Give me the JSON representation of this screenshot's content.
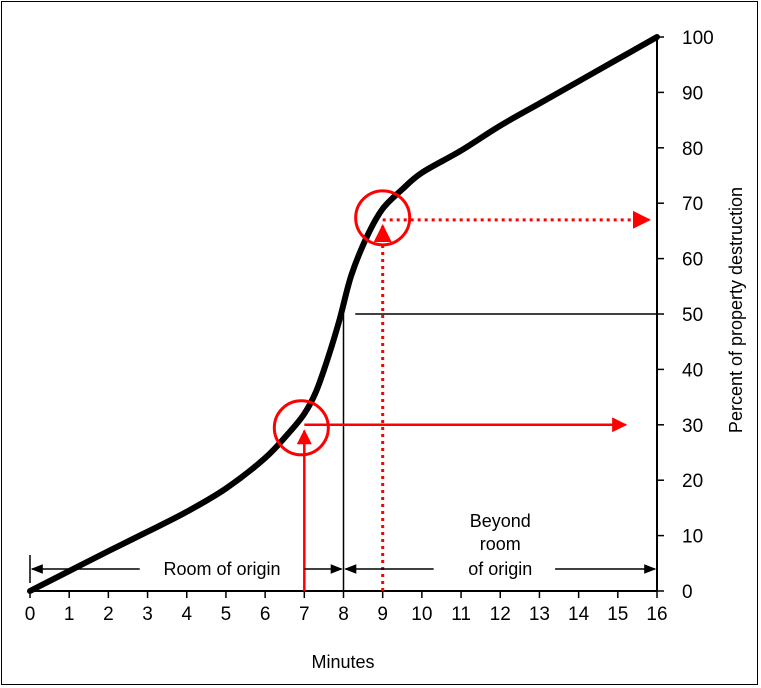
{
  "chart_data": {
    "type": "line",
    "xlabel": "Minutes",
    "ylabel": "Percent of property destruction",
    "xlim": [
      0,
      16
    ],
    "ylim": [
      0,
      100
    ],
    "x_ticks": [
      0,
      1,
      2,
      3,
      4,
      5,
      6,
      7,
      8,
      9,
      10,
      11,
      12,
      13,
      14,
      15,
      16
    ],
    "y_ticks": [
      0,
      10,
      20,
      30,
      40,
      50,
      60,
      70,
      80,
      90,
      100
    ],
    "y_axis_side": "right",
    "series": [
      {
        "x": [
          0,
          1,
          2,
          3,
          4,
          5,
          6,
          6.6,
          7,
          7.3,
          7.6,
          7.9,
          8.2,
          8.6,
          9,
          9.5,
          10,
          11,
          12,
          13,
          14,
          15,
          16
        ],
        "y": [
          0,
          3.6,
          7.2,
          10.7,
          14.3,
          18.5,
          24,
          28.5,
          32,
          36,
          42,
          49,
          57,
          64,
          69,
          72.5,
          75.5,
          79.5,
          84,
          88,
          92,
          96,
          100
        ]
      }
    ],
    "annotations": {
      "reference_line_50": {
        "x_start": 8,
        "y": 50
      },
      "reference_vline_8": {
        "x": 8,
        "y_top": 50
      },
      "solid_marker": {
        "x": 7,
        "y": 30,
        "arrow_to_x": 15.2
      },
      "dotted_marker": {
        "x": 9,
        "y": 67,
        "arrow_to_x": 15.8
      },
      "marker_color": "#ff0000",
      "room_of_origin": {
        "label": "Room of origin",
        "x_from": 0,
        "x_to": 8
      },
      "beyond_room": {
        "lines": [
          "Beyond",
          "room",
          "of origin"
        ],
        "x_from": 8,
        "x_to": 16
      }
    }
  }
}
